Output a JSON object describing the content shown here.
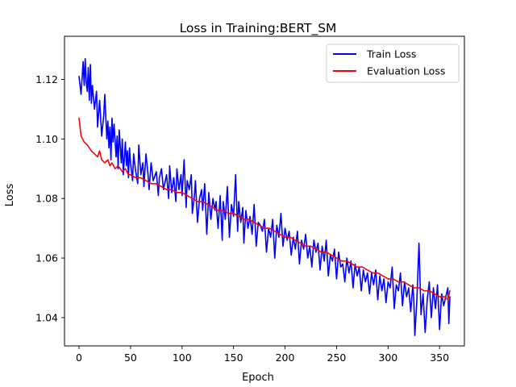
{
  "chart_data": {
    "type": "line",
    "title": "Loss in Training:BERT_SM",
    "xlabel": "Epoch",
    "ylabel": "Loss",
    "xlim": [
      -14.1,
      374.1
    ],
    "ylim": [
      1.0305,
      1.1345
    ],
    "xticks": [
      0,
      50,
      100,
      150,
      200,
      250,
      300,
      350
    ],
    "yticks": [
      1.04,
      1.06,
      1.08,
      1.1,
      1.12
    ],
    "xtick_labels": [
      "0",
      "50",
      "100",
      "150",
      "200",
      "250",
      "300",
      "350"
    ],
    "ytick_labels": [
      "1.04",
      "1.06",
      "1.08",
      "1.10",
      "1.12"
    ],
    "grid": false,
    "legend_position": "upper right",
    "series": [
      {
        "name": "Train Loss",
        "color": "#0000ff",
        "x": [
          0,
          2,
          4,
          5,
          6,
          7,
          8,
          9,
          10,
          11,
          12,
          13,
          15,
          17,
          18,
          20,
          22,
          24,
          25,
          27,
          28,
          29,
          30,
          31,
          32,
          33,
          34,
          36,
          37,
          38,
          39,
          41,
          42,
          43,
          45,
          46,
          47,
          48,
          49,
          50,
          52,
          53,
          55,
          57,
          58,
          60,
          62,
          63,
          65,
          67,
          68,
          70,
          72,
          75,
          77,
          78,
          80,
          82,
          85,
          87,
          88,
          90,
          92,
          94,
          95,
          97,
          99,
          100,
          102,
          104,
          105,
          107,
          109,
          110,
          112,
          113,
          115,
          117,
          119,
          120,
          122,
          124,
          126,
          128,
          130,
          132,
          133,
          135,
          137,
          139,
          140,
          142,
          144,
          146,
          148,
          150,
          152,
          154,
          155,
          157,
          159,
          160,
          162,
          164,
          166,
          168,
          170,
          172,
          174,
          176,
          178,
          180,
          182,
          184,
          186,
          188,
          190,
          192,
          194,
          196,
          198,
          200,
          202,
          204,
          206,
          208,
          210,
          212,
          214,
          216,
          218,
          220,
          222,
          224,
          226,
          228,
          230,
          232,
          234,
          236,
          238,
          240,
          242,
          244,
          246,
          248,
          250,
          252,
          254,
          256,
          258,
          260,
          262,
          264,
          266,
          268,
          270,
          272,
          274,
          276,
          278,
          280,
          282,
          284,
          286,
          288,
          290,
          292,
          294,
          296,
          298,
          300,
          302,
          304,
          306,
          308,
          310,
          312,
          314,
          316,
          318,
          320,
          322,
          324,
          325,
          326,
          328,
          330,
          332,
          334,
          336,
          338,
          340,
          342,
          344,
          346,
          348,
          350,
          352,
          354,
          356,
          358,
          359,
          360
        ],
        "y": [
          1.121,
          1.115,
          1.126,
          1.118,
          1.127,
          1.119,
          1.116,
          1.124,
          1.113,
          1.125,
          1.112,
          1.118,
          1.11,
          1.116,
          1.104,
          1.113,
          1.101,
          1.108,
          1.115,
          1.1,
          1.106,
          1.097,
          1.104,
          1.093,
          1.107,
          1.099,
          1.105,
          1.094,
          1.101,
          1.09,
          1.103,
          1.092,
          1.1,
          1.088,
          1.099,
          1.091,
          1.096,
          1.087,
          1.097,
          1.092,
          1.086,
          1.095,
          1.089,
          1.085,
          1.098,
          1.088,
          1.092,
          1.084,
          1.095,
          1.088,
          1.083,
          1.092,
          1.086,
          1.089,
          1.081,
          1.087,
          1.09,
          1.083,
          1.088,
          1.08,
          1.091,
          1.082,
          1.087,
          1.079,
          1.09,
          1.083,
          1.088,
          1.081,
          1.093,
          1.077,
          1.086,
          1.083,
          1.088,
          1.075,
          1.081,
          1.086,
          1.072,
          1.08,
          1.083,
          1.076,
          1.085,
          1.068,
          1.082,
          1.073,
          1.08,
          1.076,
          1.079,
          1.07,
          1.081,
          1.066,
          1.079,
          1.073,
          1.084,
          1.067,
          1.078,
          1.074,
          1.088,
          1.069,
          1.079,
          1.072,
          1.077,
          1.065,
          1.076,
          1.07,
          1.074,
          1.068,
          1.078,
          1.064,
          1.072,
          1.071,
          1.069,
          1.073,
          1.062,
          1.07,
          1.067,
          1.073,
          1.06,
          1.071,
          1.067,
          1.075,
          1.064,
          1.07,
          1.066,
          1.069,
          1.061,
          1.067,
          1.063,
          1.069,
          1.058,
          1.066,
          1.063,
          1.068,
          1.06,
          1.064,
          1.057,
          1.066,
          1.062,
          1.065,
          1.056,
          1.064,
          1.059,
          1.066,
          1.054,
          1.061,
          1.059,
          1.063,
          1.053,
          1.062,
          1.057,
          1.058,
          1.052,
          1.06,
          1.055,
          1.059,
          1.05,
          1.058,
          1.054,
          1.057,
          1.049,
          1.056,
          1.052,
          1.055,
          1.048,
          1.055,
          1.051,
          1.056,
          1.046,
          1.054,
          1.049,
          1.053,
          1.045,
          1.052,
          1.05,
          1.057,
          1.043,
          1.051,
          1.049,
          1.055,
          1.044,
          1.052,
          1.047,
          1.05,
          1.042,
          1.051,
          1.046,
          1.034,
          1.046,
          1.065,
          1.041,
          1.048,
          1.035,
          1.046,
          1.052,
          1.04,
          1.05,
          1.043,
          1.051,
          1.036,
          1.048,
          1.044,
          1.047,
          1.05,
          1.038,
          1.047
        ]
      },
      {
        "name": "Evaluation Loss",
        "color": "#ff0000",
        "x": [
          0,
          2,
          5,
          8,
          10,
          12,
          15,
          18,
          20,
          22,
          25,
          28,
          30,
          32,
          35,
          38,
          40,
          42,
          45,
          48,
          50,
          55,
          60,
          65,
          70,
          75,
          80,
          85,
          90,
          95,
          100,
          105,
          110,
          115,
          120,
          125,
          130,
          135,
          140,
          145,
          150,
          155,
          160,
          165,
          170,
          175,
          180,
          185,
          190,
          195,
          200,
          205,
          210,
          215,
          220,
          225,
          230,
          235,
          240,
          245,
          250,
          255,
          260,
          265,
          270,
          275,
          280,
          285,
          290,
          295,
          300,
          305,
          310,
          315,
          320,
          325,
          330,
          335,
          340,
          345,
          350,
          355,
          358,
          360
        ],
        "y": [
          1.107,
          1.101,
          1.099,
          1.098,
          1.097,
          1.096,
          1.095,
          1.094,
          1.096,
          1.093,
          1.092,
          1.093,
          1.091,
          1.092,
          1.09,
          1.091,
          1.09,
          1.089,
          1.09,
          1.088,
          1.088,
          1.087,
          1.087,
          1.086,
          1.085,
          1.085,
          1.084,
          1.083,
          1.083,
          1.082,
          1.082,
          1.081,
          1.08,
          1.079,
          1.079,
          1.078,
          1.077,
          1.076,
          1.076,
          1.075,
          1.075,
          1.074,
          1.073,
          1.073,
          1.072,
          1.071,
          1.07,
          1.07,
          1.069,
          1.068,
          1.067,
          1.067,
          1.066,
          1.065,
          1.064,
          1.064,
          1.063,
          1.062,
          1.062,
          1.061,
          1.06,
          1.059,
          1.059,
          1.058,
          1.057,
          1.057,
          1.056,
          1.055,
          1.055,
          1.054,
          1.053,
          1.053,
          1.052,
          1.052,
          1.051,
          1.05,
          1.05,
          1.049,
          1.049,
          1.048,
          1.047,
          1.047,
          1.046,
          1.049
        ]
      }
    ]
  }
}
